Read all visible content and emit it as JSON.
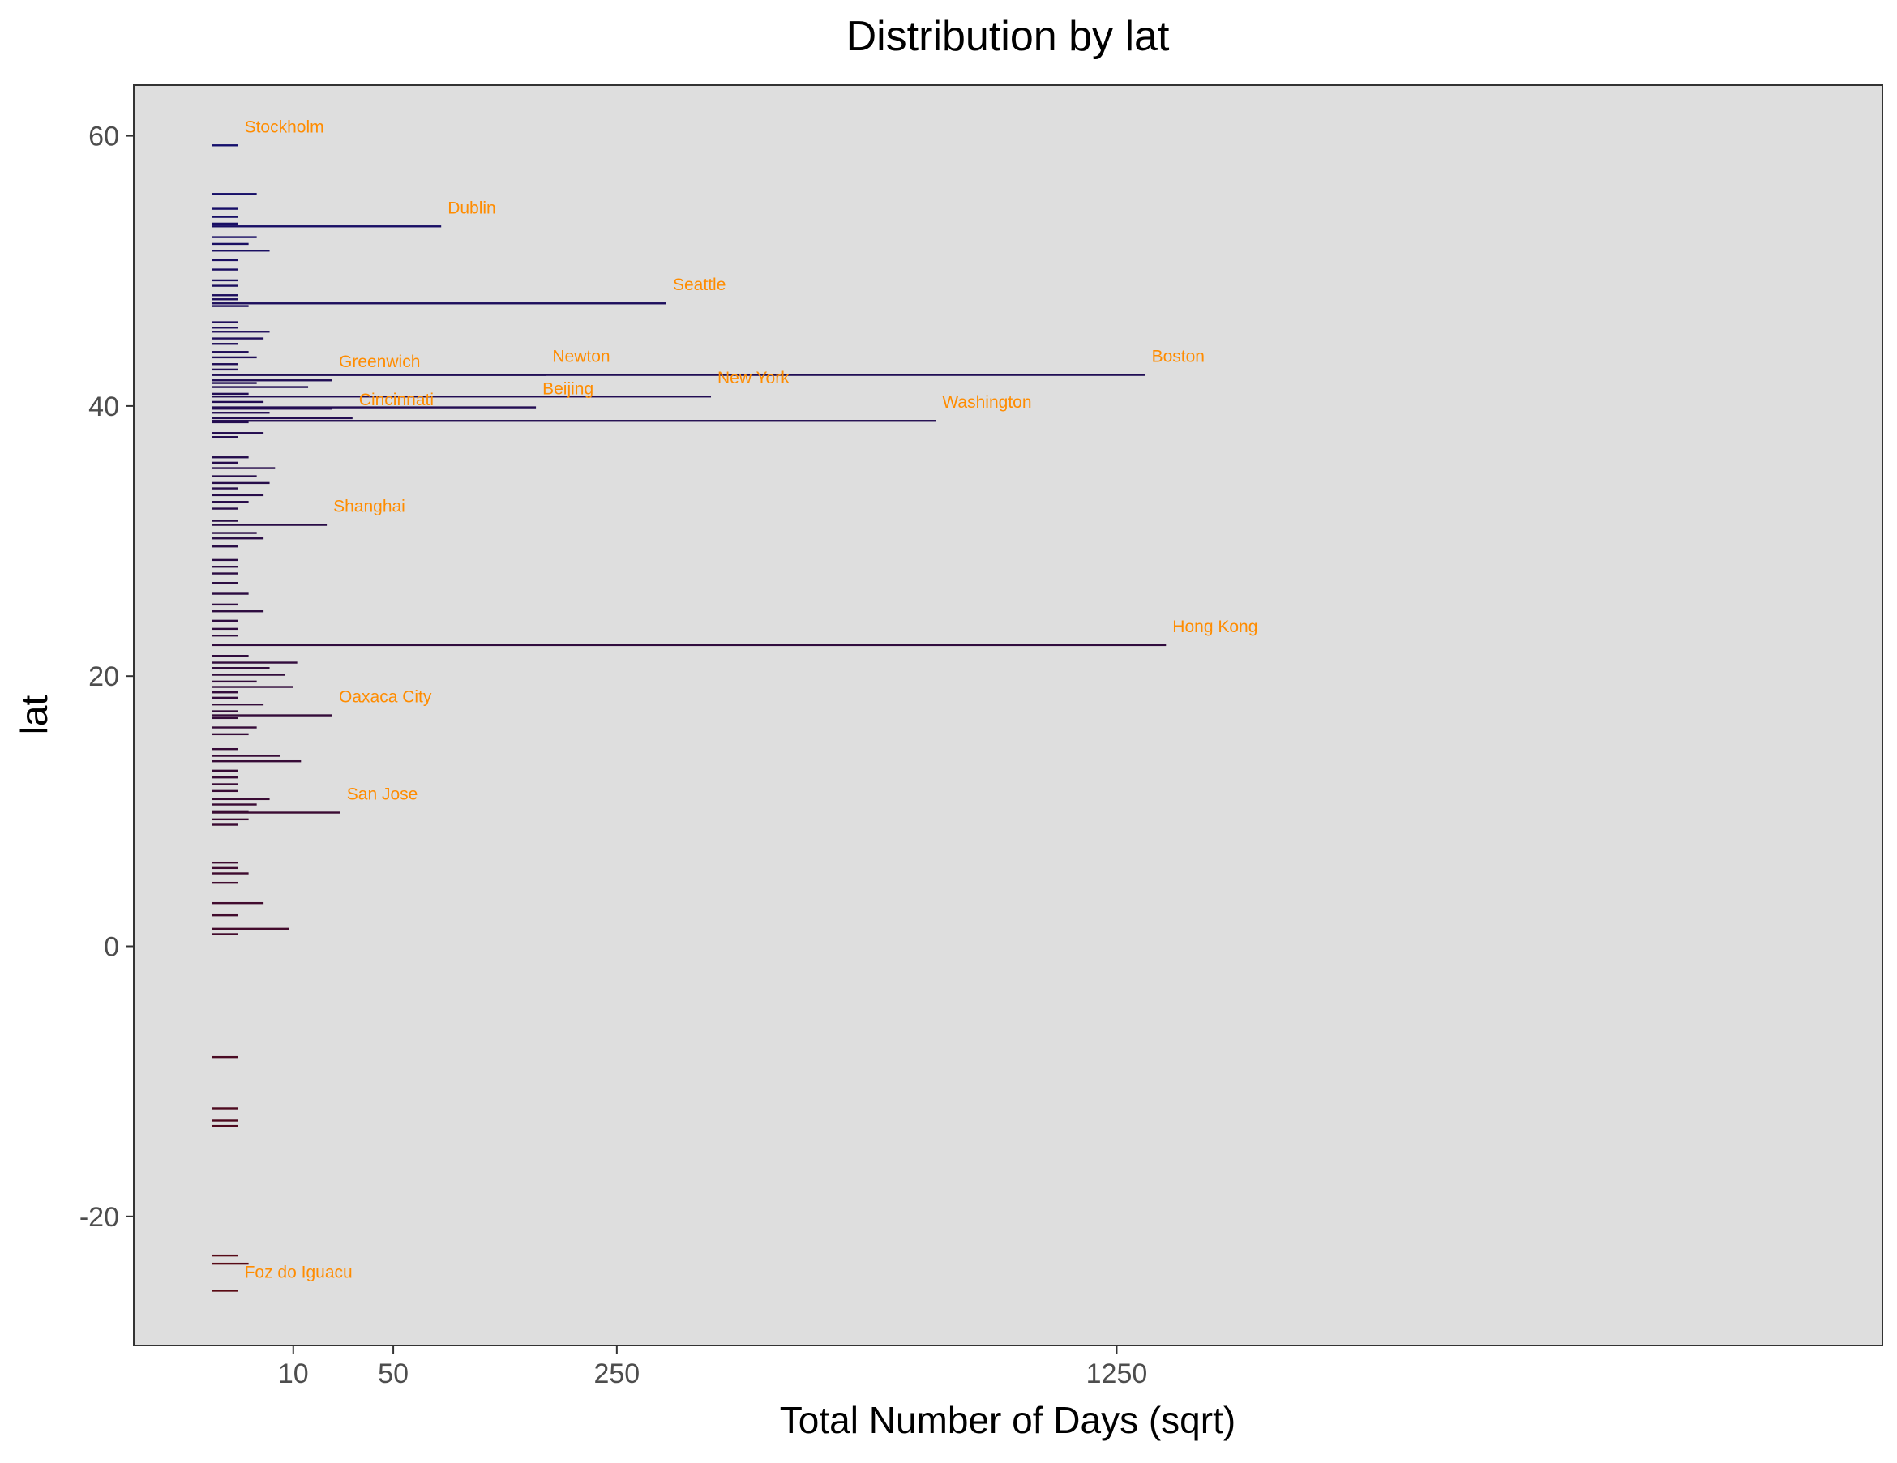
{
  "chart_data": {
    "type": "bar",
    "orientation": "horizontal",
    "title": "Distribution by lat",
    "xlabel": "Total Number of Days (sqrt)",
    "ylabel": "lat",
    "x_scale": "sqrt",
    "xlim": [
      0,
      1500
    ],
    "ylim": [
      -29.5,
      63.5
    ],
    "x_ticks": [
      10,
      50,
      250,
      1250
    ],
    "y_ticks": [
      60,
      40,
      20,
      0,
      -20
    ],
    "grid": false,
    "panel_background": "#dedede",
    "label_color": "#ff8c00",
    "bar_color_scale": {
      "low_lat": "#5a0a14",
      "mid_lat": "#2a0c45",
      "high_lat": "#14106e"
    },
    "cities": [
      {
        "label": "Stockholm",
        "lat": 59.3,
        "days": 1
      },
      {
        "label": "Dublin",
        "lat": 53.3,
        "days": 80
      },
      {
        "label": "Seattle",
        "lat": 47.6,
        "days": 315
      },
      {
        "label": "Greenwich",
        "lat": 41.9,
        "days": 22
      },
      {
        "label": "Newton",
        "lat": 42.3,
        "days": 170
      },
      {
        "label": "New York",
        "lat": 40.7,
        "days": 380
      },
      {
        "label": "Boston",
        "lat": 42.3,
        "days": 1330
      },
      {
        "label": "Washington",
        "lat": 38.9,
        "days": 800
      },
      {
        "label": "Beijing",
        "lat": 39.9,
        "days": 160
      },
      {
        "label": "Cincinnati",
        "lat": 39.1,
        "days": 30
      },
      {
        "label": "Shanghai",
        "lat": 31.2,
        "days": 20
      },
      {
        "label": "Hong Kong",
        "lat": 22.3,
        "days": 1390
      },
      {
        "label": "Oaxaca City",
        "lat": 17.1,
        "days": 22
      },
      {
        "label": "San Jose",
        "lat": 9.9,
        "days": 25
      },
      {
        "label": "Foz do Iguacu",
        "lat": -25.5,
        "days": 1
      }
    ],
    "other_bars": [
      {
        "lat": 55.7,
        "days": 3
      },
      {
        "lat": 54.6,
        "days": 1
      },
      {
        "lat": 54.0,
        "days": 1
      },
      {
        "lat": 53.5,
        "days": 1
      },
      {
        "lat": 52.5,
        "days": 3
      },
      {
        "lat": 52.0,
        "days": 2
      },
      {
        "lat": 51.5,
        "days": 5
      },
      {
        "lat": 50.8,
        "days": 1
      },
      {
        "lat": 50.1,
        "days": 1
      },
      {
        "lat": 49.3,
        "days": 1
      },
      {
        "lat": 48.9,
        "days": 1
      },
      {
        "lat": 48.2,
        "days": 1
      },
      {
        "lat": 47.9,
        "days": 1
      },
      {
        "lat": 47.4,
        "days": 2
      },
      {
        "lat": 46.2,
        "days": 1
      },
      {
        "lat": 45.8,
        "days": 1
      },
      {
        "lat": 45.5,
        "days": 5
      },
      {
        "lat": 45.0,
        "days": 4
      },
      {
        "lat": 44.6,
        "days": 1
      },
      {
        "lat": 44.0,
        "days": 2
      },
      {
        "lat": 43.6,
        "days": 3
      },
      {
        "lat": 43.1,
        "days": 1
      },
      {
        "lat": 42.7,
        "days": 1
      },
      {
        "lat": 41.7,
        "days": 3
      },
      {
        "lat": 41.4,
        "days": 14
      },
      {
        "lat": 40.9,
        "days": 2
      },
      {
        "lat": 40.3,
        "days": 4
      },
      {
        "lat": 39.8,
        "days": 22
      },
      {
        "lat": 39.5,
        "days": 5
      },
      {
        "lat": 38.8,
        "days": 2
      },
      {
        "lat": 38.0,
        "days": 4
      },
      {
        "lat": 37.7,
        "days": 1
      },
      {
        "lat": 36.2,
        "days": 2
      },
      {
        "lat": 35.8,
        "days": 1
      },
      {
        "lat": 35.4,
        "days": 6
      },
      {
        "lat": 34.8,
        "days": 3
      },
      {
        "lat": 34.3,
        "days": 5
      },
      {
        "lat": 33.9,
        "days": 1
      },
      {
        "lat": 33.4,
        "days": 4
      },
      {
        "lat": 32.9,
        "days": 2
      },
      {
        "lat": 32.4,
        "days": 1
      },
      {
        "lat": 31.5,
        "days": 1
      },
      {
        "lat": 30.6,
        "days": 3
      },
      {
        "lat": 30.2,
        "days": 4
      },
      {
        "lat": 29.6,
        "days": 1
      },
      {
        "lat": 28.6,
        "days": 1
      },
      {
        "lat": 28.1,
        "days": 1
      },
      {
        "lat": 27.6,
        "days": 1
      },
      {
        "lat": 26.9,
        "days": 1
      },
      {
        "lat": 26.1,
        "days": 2
      },
      {
        "lat": 25.3,
        "days": 1
      },
      {
        "lat": 24.8,
        "days": 4
      },
      {
        "lat": 24.1,
        "days": 1
      },
      {
        "lat": 23.5,
        "days": 1
      },
      {
        "lat": 23.0,
        "days": 1
      },
      {
        "lat": 21.5,
        "days": 2
      },
      {
        "lat": 21.0,
        "days": 11
      },
      {
        "lat": 20.6,
        "days": 5
      },
      {
        "lat": 20.1,
        "days": 8
      },
      {
        "lat": 19.6,
        "days": 3
      },
      {
        "lat": 19.2,
        "days": 10
      },
      {
        "lat": 18.8,
        "days": 1
      },
      {
        "lat": 18.4,
        "days": 1
      },
      {
        "lat": 17.9,
        "days": 4
      },
      {
        "lat": 17.4,
        "days": 1
      },
      {
        "lat": 16.9,
        "days": 1
      },
      {
        "lat": 16.2,
        "days": 3
      },
      {
        "lat": 15.7,
        "days": 2
      },
      {
        "lat": 14.6,
        "days": 1
      },
      {
        "lat": 14.1,
        "days": 7
      },
      {
        "lat": 13.7,
        "days": 12
      },
      {
        "lat": 13.0,
        "days": 1
      },
      {
        "lat": 12.5,
        "days": 1
      },
      {
        "lat": 12.0,
        "days": 1
      },
      {
        "lat": 11.5,
        "days": 1
      },
      {
        "lat": 10.9,
        "days": 5
      },
      {
        "lat": 10.5,
        "days": 3
      },
      {
        "lat": 10.0,
        "days": 2
      },
      {
        "lat": 9.4,
        "days": 2
      },
      {
        "lat": 9.0,
        "days": 1
      },
      {
        "lat": 6.2,
        "days": 1
      },
      {
        "lat": 5.8,
        "days": 1
      },
      {
        "lat": 5.4,
        "days": 2
      },
      {
        "lat": 4.7,
        "days": 1
      },
      {
        "lat": 3.2,
        "days": 4
      },
      {
        "lat": 2.3,
        "days": 1
      },
      {
        "lat": 1.3,
        "days": 9
      },
      {
        "lat": 0.9,
        "days": 1
      },
      {
        "lat": -8.2,
        "days": 1
      },
      {
        "lat": -12.0,
        "days": 1
      },
      {
        "lat": -12.9,
        "days": 1
      },
      {
        "lat": -13.3,
        "days": 1
      },
      {
        "lat": -22.9,
        "days": 1
      },
      {
        "lat": -23.5,
        "days": 2
      }
    ]
  }
}
